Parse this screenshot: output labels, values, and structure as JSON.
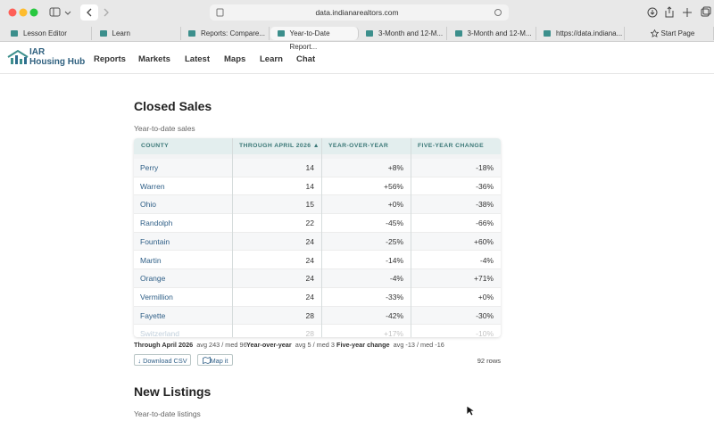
{
  "browser": {
    "url": "data.indianarealtors.com",
    "tabs": [
      "Lesson Editor",
      "Learn",
      "Reports: Compare...",
      "Year-to-Date Report...",
      "3-Month and 12-M...",
      "3-Month and 12-M...",
      "https://data.indiana...",
      "Start Page"
    ],
    "active_tab": 3
  },
  "nav": {
    "logo_top": "IAR",
    "logo_bottom": "Housing Hub",
    "links": [
      "Reports",
      "Markets",
      "Latest",
      "Maps",
      "Learn",
      "Chat"
    ]
  },
  "section": {
    "title": "Closed Sales",
    "subtitle": "Year-to-date sales",
    "table": {
      "headers": [
        "COUNTY",
        "THROUGH APRIL 2026 ▲",
        "YEAR-OVER-YEAR",
        "FIVE-YEAR CHANGE"
      ],
      "rows": [
        [
          "Perry",
          "14",
          "+8%",
          "-18%"
        ],
        [
          "Warren",
          "14",
          "+56%",
          "-36%"
        ],
        [
          "Ohio",
          "15",
          "+0%",
          "-38%"
        ],
        [
          "Randolph",
          "22",
          "-45%",
          "-66%"
        ],
        [
          "Fountain",
          "24",
          "-25%",
          "+60%"
        ],
        [
          "Martin",
          "24",
          "-14%",
          "-4%"
        ],
        [
          "Orange",
          "24",
          "-4%",
          "+71%"
        ],
        [
          "Vermillion",
          "24",
          "-33%",
          "+0%"
        ],
        [
          "Fayette",
          "28",
          "-42%",
          "-30%"
        ],
        [
          "Switzerland",
          "28",
          "+17%",
          "-10%"
        ]
      ]
    },
    "stats": [
      {
        "label": "Through April 2026",
        "value": "avg 243 / med 96"
      },
      {
        "label": "Year-over-year",
        "value": "avg 5 / med 3"
      },
      {
        "label": "Five-year change",
        "value": "avg -13 / med -16"
      }
    ],
    "buttons": [
      "↓ Download CSV",
      "Map it"
    ],
    "row_count": "92 rows"
  },
  "next_section": {
    "title": "New Listings",
    "subtitle": "Year-to-date listings"
  }
}
